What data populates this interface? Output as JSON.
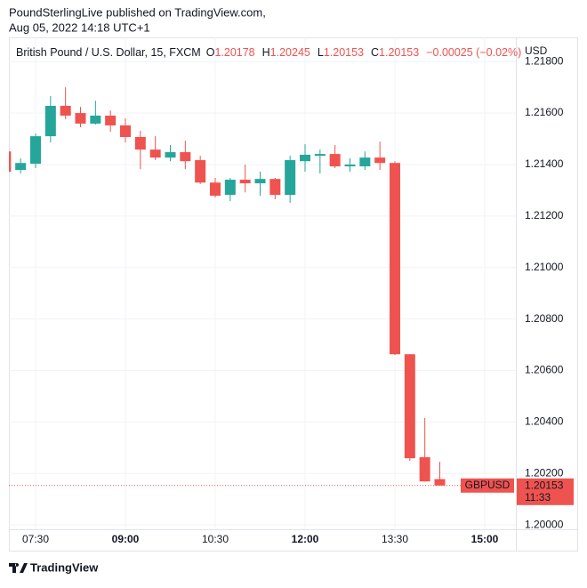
{
  "header": {
    "line1": "PoundSterlingLive published on TradingView.com,",
    "line2": "Aug 05, 2022 14:18 UTC+1"
  },
  "chart_data": {
    "type": "candlestick",
    "instrument": "British Pound / U.S. Dollar, 15, FXCM",
    "ohlc_legend": [
      {
        "label": "O",
        "value": 1.20178
      },
      {
        "label": "H",
        "value": 1.20245
      },
      {
        "label": "L",
        "value": 1.20153
      },
      {
        "label": "C",
        "value": 1.20153
      }
    ],
    "change": {
      "value": -0.00025,
      "label": "−0.00025 (−0.02%)"
    },
    "currency": "USD",
    "x": [
      "07:00",
      "07:15",
      "07:30",
      "07:45",
      "08:00",
      "08:15",
      "08:30",
      "08:45",
      "09:00",
      "09:15",
      "09:30",
      "09:45",
      "10:00",
      "10:15",
      "10:30",
      "10:45",
      "11:00",
      "11:15",
      "11:30",
      "11:45",
      "12:00",
      "12:15",
      "12:30",
      "12:45",
      "13:00",
      "13:15",
      "13:30",
      "13:45",
      "14:00",
      "14:15"
    ],
    "open": [
      1.21451,
      1.21379,
      1.21403,
      1.2151,
      1.21628,
      1.216,
      1.21559,
      1.2159,
      1.21552,
      1.21507,
      1.21458,
      1.21427,
      1.21448,
      1.21417,
      1.2133,
      1.21282,
      1.21341,
      1.21327,
      1.21344,
      1.21282,
      1.21413,
      1.21434,
      1.21441,
      1.21393,
      1.21393,
      1.21427,
      1.21406,
      1.20663,
      1.20263,
      1.20178
    ],
    "high": [
      1.21458,
      1.21424,
      1.21521,
      1.21666,
      1.217,
      1.21624,
      1.21648,
      1.2161,
      1.21579,
      1.21531,
      1.2151,
      1.21476,
      1.21493,
      1.21434,
      1.21348,
      1.21348,
      1.214,
      1.21372,
      1.21348,
      1.21434,
      1.21479,
      1.21458,
      1.21476,
      1.21424,
      1.21451,
      1.21489,
      1.21413,
      1.20663,
      1.20415,
      1.20245
    ],
    "low": [
      1.21365,
      1.21365,
      1.21386,
      1.21486,
      1.21576,
      1.21545,
      1.21555,
      1.21527,
      1.21486,
      1.21382,
      1.21417,
      1.21413,
      1.21382,
      1.21324,
      1.21272,
      1.21258,
      1.21292,
      1.21279,
      1.21265,
      1.21251,
      1.21372,
      1.21365,
      1.21386,
      1.21372,
      1.21379,
      1.21379,
      1.2066,
      1.20249,
      1.20169,
      1.20153
    ],
    "close": [
      1.21372,
      1.21406,
      1.2151,
      1.21628,
      1.2159,
      1.21559,
      1.2159,
      1.21552,
      1.21507,
      1.21458,
      1.21427,
      1.21448,
      1.21413,
      1.2133,
      1.21279,
      1.21341,
      1.21327,
      1.21344,
      1.21282,
      1.21417,
      1.21438,
      1.21441,
      1.21393,
      1.214,
      1.21427,
      1.21406,
      1.20663,
      1.20259,
      1.20169,
      1.20153
    ],
    "up_color": "#26a69a",
    "down_color": "#ef5350",
    "ylim": [
      1.19983,
      1.21894
    ],
    "yticks": [
      {
        "value": 1.2,
        "label": "1.20000"
      },
      {
        "value": 1.202,
        "label": "1.20200"
      },
      {
        "value": 1.204,
        "label": "1.20400"
      },
      {
        "value": 1.206,
        "label": "1.20600"
      },
      {
        "value": 1.208,
        "label": "1.20800"
      },
      {
        "value": 1.21,
        "label": "1.21000"
      },
      {
        "value": 1.212,
        "label": "1.21200"
      },
      {
        "value": 1.214,
        "label": "1.21400"
      },
      {
        "value": 1.216,
        "label": "1.21600"
      },
      {
        "value": 1.218,
        "label": "1.21800"
      }
    ],
    "xticks": [
      "07:30",
      "09:00",
      "10:30",
      "12:00",
      "13:30",
      "15:00"
    ],
    "grid": true,
    "last_price": {
      "symbol": "GBPUSD",
      "value": 1.20153,
      "countdown": "11:33"
    }
  },
  "footer": {
    "brand": "TradingView"
  }
}
